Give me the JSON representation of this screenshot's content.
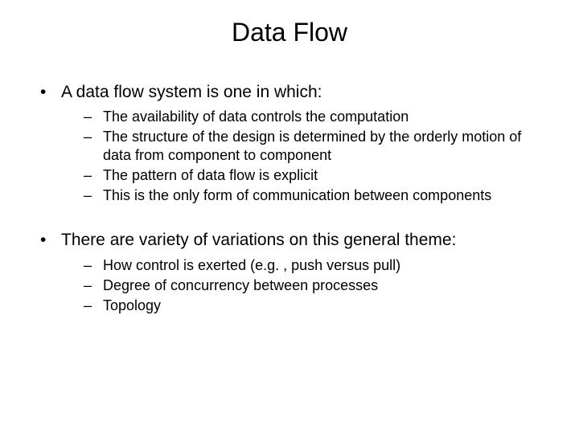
{
  "title": "Data Flow",
  "bullets": [
    {
      "text": "A data flow system is one in which:",
      "sub": [
        "The availability of data controls the computation",
        "The structure of the design is determined by the orderly motion of data from component to component",
        "The pattern of data flow is explicit",
        "This is the only form of communication between components"
      ]
    },
    {
      "text": "There are variety of variations on this general theme:",
      "sub": [
        "How control is exerted (e.g. , push versus pull)",
        "Degree of concurrency between processes",
        "Topology"
      ]
    }
  ],
  "style": {
    "background_color": "#ffffff",
    "text_color": "#000000",
    "title_fontsize": 32,
    "level1_fontsize": 21,
    "level2_fontsize": 18,
    "font_family": "Arial"
  }
}
